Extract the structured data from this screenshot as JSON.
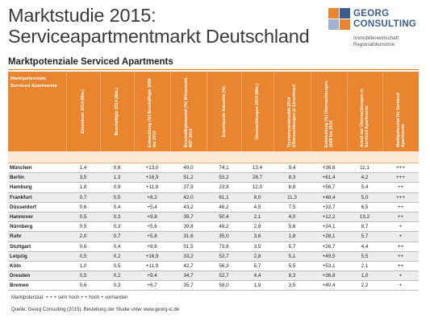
{
  "title_line1": "Marktstudie 2015:",
  "title_line2": "Serviceapartmentmarkt Deutschland",
  "logo": {
    "brand_line1": "GEORG",
    "brand_line2": "CONSULTING",
    "tag_line1": "Immobilienwirtschaft",
    "tag_line2": "Regionalökonomie",
    "colors": [
      "#e9852e",
      "#3b5e8c",
      "#9db3cf"
    ]
  },
  "subtitle": "Marktpotenziale Serviced Apartments",
  "table": {
    "row_header_line1": "Marktpotenziale",
    "row_header_line2": "Serviced Apartments",
    "columns": [
      "Einwohner 2014 (Mio.)",
      "Beschäftigte 2014 (Mio.)",
      "Entwicklung (%) Beschäftigte 2008 bis 2014",
      "Beschäftigtenanteil (%) Wissensint. WZ* 2014",
      "Exportquote Industrie (%)",
      "Übernachtungen 2014 (Mio.)",
      "Tourismusintensität 2014 (Übernachtungen je Einwohner)",
      "Entwicklung (%) Übernachtungen 2008 bis 2014",
      "Anteil der Übernachtungen in Serviced Apartments",
      "Marktpotenzial für Serviced Apartments"
    ],
    "rows": [
      {
        "city": "München",
        "values": [
          "1,4",
          "0,8",
          "+13,0",
          "49,0",
          "74,1",
          "13,4",
          "9,4",
          "+36,6",
          "11,1",
          "+++"
        ]
      },
      {
        "city": "Berlin",
        "values": [
          "3,5",
          "1,3",
          "+16,9",
          "51,2",
          "53,2",
          "28,7",
          "8,3",
          "+61,4",
          "4,2",
          "+++"
        ]
      },
      {
        "city": "Hamburg",
        "values": [
          "1,8",
          "0,9",
          "+11,8",
          "37,9",
          "23,8",
          "12,0",
          "6,8",
          "+56,7",
          "5,4",
          "++"
        ]
      },
      {
        "city": "Frankfurt",
        "values": [
          "0,7",
          "0,5",
          "+8,2",
          "42,0",
          "61,1",
          "8,0",
          "11,3",
          "+48,4",
          "5,0",
          "+++"
        ]
      },
      {
        "city": "Düsseldorf",
        "values": [
          "0,6",
          "0,4",
          "+5,4",
          "43,2",
          "46,2",
          "4,5",
          "7,5",
          "+33,7",
          "6,5",
          "++"
        ]
      },
      {
        "city": "Hannover",
        "values": [
          "0,5",
          "0,3",
          "+9,8",
          "39,7",
          "50,4",
          "2,1",
          "4,0",
          "+12,2",
          "13,2",
          "++"
        ]
      },
      {
        "city": "Nürnberg",
        "values": [
          "0,5",
          "0,3",
          "+5,6",
          "39,8",
          "48,2",
          "2,8",
          "5,6",
          "+24,1",
          "8,7",
          "+"
        ]
      },
      {
        "city": "Ruhr",
        "values": [
          "2,0",
          "0,7",
          "+5,8",
          "31,6",
          "35,0",
          "3,6",
          "1,8",
          "+28,1",
          "5,7",
          "+"
        ]
      },
      {
        "city": "Stuttgart",
        "values": [
          "0,6",
          "0,4",
          "+9,6",
          "51,5",
          "73,8",
          "3,5",
          "5,7",
          "+26,7",
          "4,4",
          "++"
        ]
      },
      {
        "city": "Leipzig",
        "values": [
          "0,5",
          "0,2",
          "+16,9",
          "33,2",
          "52,7",
          "2,8",
          "5,1",
          "+49,5",
          "5,5",
          "++"
        ]
      },
      {
        "city": "Köln",
        "values": [
          "1,0",
          "0,5",
          "+11,9",
          "42,7",
          "56,3",
          "5,7",
          "5,5",
          "+53,1",
          "2,1",
          "++"
        ]
      },
      {
        "city": "Dresden",
        "values": [
          "0,5",
          "0,2",
          "+9,4",
          "34,7",
          "52,7",
          "4,4",
          "8,3",
          "+36,8",
          "1,0",
          "+"
        ]
      },
      {
        "city": "Bremen",
        "values": [
          "0,6",
          "0,3",
          "+6,7",
          "35,7",
          "58,0",
          "1,9",
          "3,5",
          "+40,4",
          "2,2",
          "+"
        ]
      }
    ]
  },
  "legend": "Marktpotenzial: + + + sehr hoch    + + hoch    + vorhanden",
  "source": "Quelle: Georg Consulting (2015).   Bestellung der Studie unter www.georg-ic.de"
}
